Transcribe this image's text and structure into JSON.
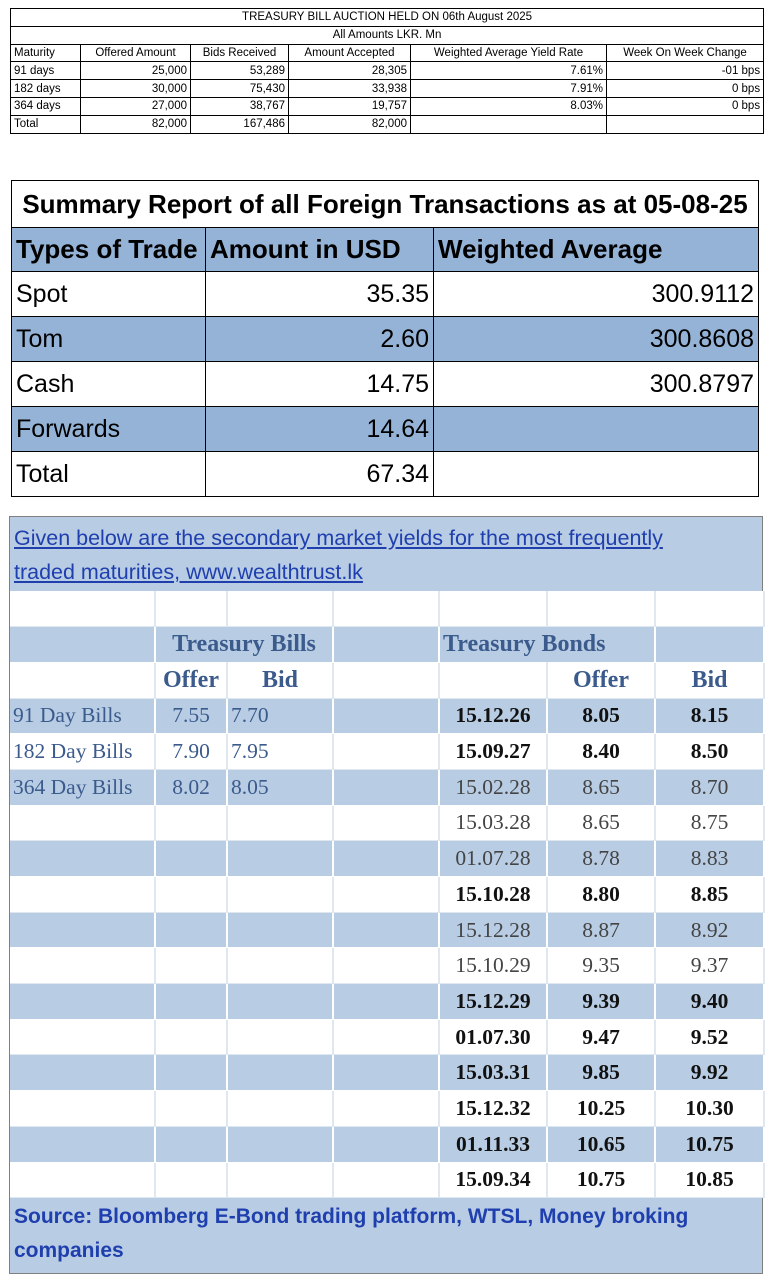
{
  "auction": {
    "title": "TREASURY BILL AUCTION HELD ON 06th August 2025",
    "subtitle": "All Amounts LKR. Mn",
    "headers": [
      "Maturity",
      "Offered Amount",
      "Bids Received",
      "Amount Accepted",
      "Weighted Average Yield Rate",
      "Week On Week Change"
    ],
    "rows": [
      {
        "maturity": "91 days",
        "offered": "25,000",
        "bids": "53,289",
        "accepted": "28,305",
        "yield": "7.61%",
        "change": "-01 bps"
      },
      {
        "maturity": "182 days",
        "offered": "30,000",
        "bids": "75,430",
        "accepted": "33,938",
        "yield": "7.91%",
        "change": "0 bps"
      },
      {
        "maturity": "364 days",
        "offered": "27,000",
        "bids": "38,767",
        "accepted": "19,757",
        "yield": "8.03%",
        "change": "0 bps"
      }
    ],
    "total": {
      "label": "Total",
      "offered": "82,000",
      "bids": "167,486",
      "accepted": "82,000"
    }
  },
  "fx": {
    "title": "Summary Report of all Foreign Transactions as at 05-08-25",
    "headers": [
      "Types of Trade",
      "Amount in USD",
      "Weighted Average"
    ],
    "rows": [
      {
        "type": "Spot",
        "amount": "35.35",
        "wavg": "300.9112"
      },
      {
        "type": "Tom",
        "amount": "2.60",
        "wavg": "300.8608"
      },
      {
        "type": "Cash",
        "amount": "14.75",
        "wavg": "300.8797"
      },
      {
        "type": "Forwards",
        "amount": "14.64",
        "wavg": ""
      },
      {
        "type": "Total",
        "amount": "67.34",
        "wavg": ""
      }
    ],
    "band_color": "#95b3d7"
  },
  "yields": {
    "intro_line1": "Given below are the secondary market yields for the most frequently",
    "intro_line2": "traded maturities,     www.wealthtrust.lk",
    "bills_header": "Treasury Bills",
    "bonds_header": "Treasury Bonds",
    "offer_label": "Offer",
    "bid_label": "Bid",
    "bills": [
      {
        "name": "91 Day Bills",
        "offer": "7.55",
        "bid": "7.70"
      },
      {
        "name": "182 Day Bills",
        "offer": "7.90",
        "bid": "7.95"
      },
      {
        "name": "364 Day Bills",
        "offer": "8.02",
        "bid": "8.05"
      }
    ],
    "bonds": [
      {
        "maturity": "15.12.26",
        "offer": "8.05",
        "bid": "8.15",
        "bold": true
      },
      {
        "maturity": "15.09.27",
        "offer": "8.40",
        "bid": "8.50",
        "bold": true
      },
      {
        "maturity": "15.02.28",
        "offer": "8.65",
        "bid": "8.70",
        "bold": false
      },
      {
        "maturity": "15.03.28",
        "offer": "8.65",
        "bid": "8.75",
        "bold": false
      },
      {
        "maturity": "01.07.28",
        "offer": "8.78",
        "bid": "8.83",
        "bold": false
      },
      {
        "maturity": "15.10.28",
        "offer": "8.80",
        "bid": "8.85",
        "bold": true
      },
      {
        "maturity": "15.12.28",
        "offer": "8.87",
        "bid": "8.92",
        "bold": false
      },
      {
        "maturity": "15.10.29",
        "offer": "9.35",
        "bid": "9.37",
        "bold": false
      },
      {
        "maturity": "15.12.29",
        "offer": "9.39",
        "bid": "9.40",
        "bold": true
      },
      {
        "maturity": "01.07.30",
        "offer": "9.47",
        "bid": "9.52",
        "bold": true
      },
      {
        "maturity": "15.03.31",
        "offer": "9.85",
        "bid": "9.92",
        "bold": true
      },
      {
        "maturity": "15.12.32",
        "offer": "10.25",
        "bid": "10.30",
        "bold": true
      },
      {
        "maturity": "01.11.33",
        "offer": "10.65",
        "bid": "10.75",
        "bold": true
      },
      {
        "maturity": "15.09.34",
        "offer": "10.75",
        "bid": "10.85",
        "bold": true
      }
    ],
    "source": "Source: Bloomberg E-Bond trading platform, WTSL, Money broking companies",
    "band_color": "#b8cce4"
  }
}
